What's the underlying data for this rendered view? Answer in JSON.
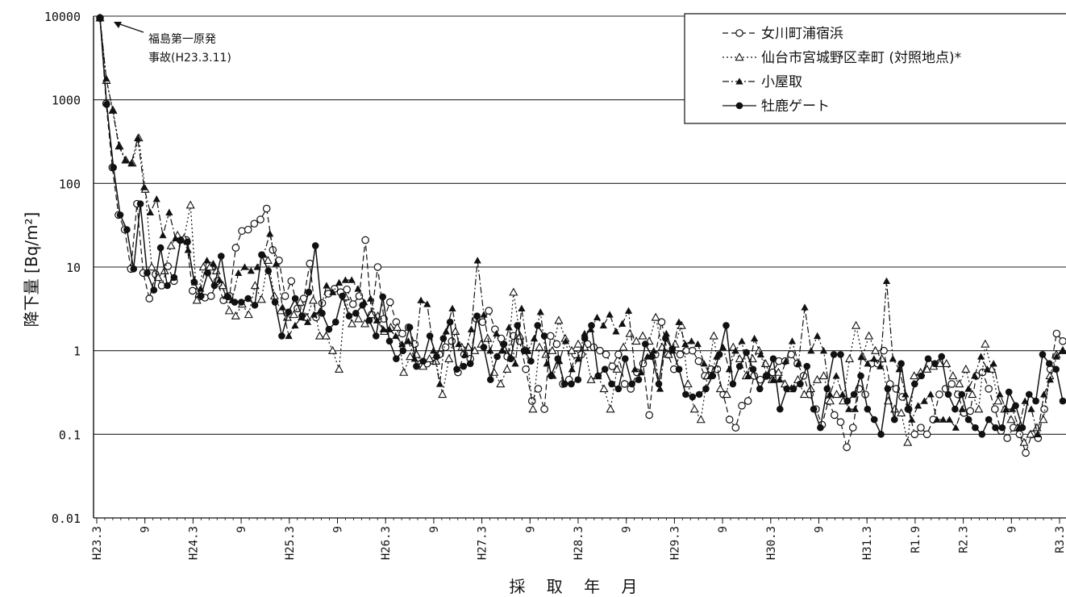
{
  "chart_data": {
    "type": "line",
    "title": "",
    "xlabel": "採 取 年 月",
    "ylabel": "降下量 [Bq/m²]",
    "yscale": "log",
    "ylim": [
      0.01,
      10000
    ],
    "yticks": [
      "10000",
      "1000",
      "100",
      "10",
      "1",
      "0.1",
      "0.01"
    ],
    "xticks": [
      "H23.3",
      "9",
      "H24.3",
      "9",
      "H25.3",
      "9",
      "H26.3",
      "9",
      "H27.3",
      "9",
      "H28.3",
      "9",
      "H29.3",
      "9",
      "H30.3",
      "9",
      "H31.3",
      "R1.9",
      "R2.3",
      "9",
      "R3.3"
    ],
    "grid": "horizontal",
    "legend_position": "top-right",
    "annotation": {
      "line1": "福島第一原発",
      "line2": "事故(H23.3.11)"
    },
    "series": [
      {
        "name": "女川町浦宿浜",
        "marker": "open-circle",
        "linestyle": "dashed",
        "values": [
          9500,
          900,
          155,
          42,
          28,
          9.5,
          57,
          8.5,
          4.2,
          8.2,
          6,
          10.2,
          6.8,
          21,
          21,
          5.2,
          4.4,
          4.3,
          4.5,
          6.8,
          4,
          4.5,
          17,
          27,
          28,
          33,
          37,
          50,
          16,
          12,
          4.5,
          6.8,
          3.2,
          4.2,
          11,
          2.5,
          3.7,
          4.8,
          5.5,
          5,
          5.4,
          3.6,
          4.5,
          21,
          2.7,
          10,
          2.4,
          3.8,
          2.2,
          1.6,
          1.9,
          1.2,
          0.7,
          0.7,
          0.75,
          0.9,
          1.1,
          1.3,
          0.55,
          0.9,
          0.8,
          2.4,
          2.2,
          3,
          1.8,
          1.4,
          0.85,
          1.5,
          1.3,
          0.6,
          0.25,
          0.35,
          0.2,
          1.5,
          1.2,
          0.4,
          0.45,
          0.9,
          0.9,
          1.2,
          1.1,
          1,
          0.9,
          0.65,
          0.9,
          0.4,
          0.35,
          0.55,
          0.7,
          0.17,
          0.9,
          2.2,
          0.9,
          0.6,
          0.9,
          1,
          1,
          0.75,
          0.5,
          0.6,
          0.6,
          0.3,
          0.15,
          0.12,
          0.22,
          0.25,
          0.5,
          0.45,
          0.5,
          0.55,
          0.75,
          0.75,
          0.9,
          0.7,
          0.5,
          0.3,
          0.2,
          0.13,
          0.25,
          0.17,
          0.14,
          0.07,
          0.12,
          0.35,
          0.3,
          0.7,
          0.7,
          1,
          0.4,
          0.35,
          0.28,
          0.2,
          0.1,
          0.12,
          0.1,
          0.15,
          0.3,
          0.35,
          0.4,
          0.3,
          0.18,
          0.19,
          0.5,
          0.55,
          0.35,
          0.2,
          0.11,
          0.09,
          0.12,
          0.1,
          0.06,
          0.1,
          0.09,
          0.2,
          0.6,
          1.6,
          1.3
        ]
      },
      {
        "name": "仙台市宮城野区幸町 (対照地点)*",
        "marker": "open-triangle",
        "linestyle": "dotted",
        "values": [
          9500,
          1700,
          750,
          280,
          190,
          175,
          350,
          85,
          10,
          7.5,
          9,
          18,
          24,
          22,
          55,
          4,
          10,
          10,
          9,
          6,
          3,
          2.6,
          3.6,
          2.7,
          6,
          4.1,
          12,
          4.5,
          3,
          2.5,
          2.7,
          3.8,
          2.5,
          4,
          1.5,
          1.5,
          1,
          0.6,
          4.4,
          2.1,
          2.4,
          2.1,
          2.7,
          2.6,
          1.7,
          1.9,
          1.9,
          0.55,
          0.85,
          0.9,
          0.65,
          0.8,
          0.75,
          0.3,
          0.8,
          1.7,
          1.1,
          1.1,
          1,
          1.2,
          1.4,
          0.55,
          0.4,
          0.6,
          5,
          1.5,
          1,
          0.2,
          1.1,
          0.9,
          1,
          2.3,
          1.4,
          1,
          1.2,
          1.1,
          0.45,
          0.5,
          0.35,
          0.2,
          0.6,
          1.1,
          1.6,
          1.3,
          1.5,
          1.3,
          2.5,
          1.1,
          0.9,
          1.2,
          2,
          0.4,
          0.2,
          0.15,
          0.5,
          1.5,
          0.35,
          0.3,
          1.1,
          0.8,
          0.5,
          0.8,
          1,
          0.7,
          0.45,
          0.55,
          0.4,
          0.35,
          0.45,
          0.3,
          0.35,
          0.45,
          0.5,
          0.25,
          0.3,
          0.25,
          0.8,
          2,
          0.85,
          1.5,
          1,
          0.8,
          0.25,
          0.2,
          0.18,
          0.08,
          0.5,
          0.55,
          0.6,
          0.65,
          0.7,
          0.7,
          0.5,
          0.4,
          0.6,
          0.3,
          0.2,
          1.2,
          0.6,
          0.25,
          0.2,
          0.15,
          0.12,
          0.08,
          0.1,
          0.12,
          0.15,
          0.5,
          0.9,
          1
        ]
      },
      {
        "name": "小屋取",
        "marker": "filled-triangle",
        "linestyle": "dashdot",
        "values": [
          9500,
          1800,
          750,
          280,
          190,
          175,
          350,
          90,
          45,
          65,
          24,
          45,
          22,
          21,
          16,
          7,
          5.5,
          12,
          11,
          7,
          4.5,
          4,
          8.5,
          10,
          9,
          10,
          14,
          25,
          11,
          3.3,
          1.5,
          2,
          2.5,
          2.2,
          2.7,
          3,
          6,
          5,
          6.5,
          7,
          7,
          5.5,
          3.8,
          4.2,
          2.3,
          1.8,
          1.8,
          1.5,
          1.2,
          1.3,
          0.8,
          4,
          3.6,
          1,
          0.4,
          1.7,
          3.2,
          1.2,
          0.9,
          1.8,
          12,
          2.7,
          1,
          1.6,
          1,
          1.9,
          0.7,
          3.2,
          1,
          1.4,
          2.9,
          0.7,
          0.5,
          0.75,
          1.3,
          0.6,
          0.8,
          1.6,
          1.8,
          2.5,
          2,
          2.7,
          1.7,
          2.1,
          3,
          0.6,
          0.55,
          0.85,
          1,
          0.35,
          1.6,
          1,
          2.2,
          1.2,
          1.3,
          1.2,
          0.7,
          0.5,
          0.85,
          1.1,
          0.6,
          1,
          1.3,
          0.5,
          1.4,
          0.9,
          0.5,
          0.45,
          0.45,
          0.75,
          1.3,
          0.7,
          3.3,
          1,
          1.5,
          1,
          0.3,
          0.5,
          0.3,
          0.2,
          0.2,
          0.85,
          0.7,
          0.8,
          0.65,
          6.8,
          0.8,
          0.6,
          0.3,
          0.15,
          0.22,
          0.25,
          0.3,
          0.15,
          0.15,
          0.15,
          0.12,
          0.2,
          0.35,
          0.5,
          0.85,
          0.6,
          0.7,
          0.3,
          0.2,
          0.2,
          0.12,
          0.25,
          0.2,
          0.1,
          0.3,
          0.45,
          0.85,
          1
        ]
      },
      {
        "name": "牡鹿ゲート",
        "marker": "filled-circle",
        "linestyle": "solid",
        "values": [
          9500,
          880,
          155,
          42,
          28,
          9.5,
          57,
          8.5,
          5.3,
          17,
          6,
          7.5,
          21,
          20,
          6.6,
          4.5,
          8.5,
          6,
          13.5,
          4.4,
          3.8,
          3.8,
          4.2,
          3.5,
          14,
          9,
          3.8,
          1.5,
          2.9,
          4.2,
          2.6,
          5,
          18,
          2.8,
          1.8,
          2.2,
          4.5,
          2.6,
          2.8,
          3.5,
          2.3,
          1.5,
          4.4,
          1.3,
          0.8,
          1,
          1.9,
          0.65,
          0.75,
          1.5,
          0.85,
          1.4,
          2.2,
          0.6,
          0.65,
          0.7,
          2.6,
          1.1,
          0.45,
          0.85,
          1.2,
          0.8,
          2,
          1,
          0.75,
          2,
          1.5,
          0.5,
          0.8,
          0.4,
          0.4,
          0.45,
          1.4,
          2,
          0.5,
          0.6,
          0.4,
          0.35,
          0.8,
          0.4,
          0.45,
          1.2,
          0.85,
          0.4,
          1.4,
          1.05,
          0.6,
          0.3,
          0.28,
          0.3,
          0.35,
          0.5,
          0.9,
          2,
          0.4,
          0.65,
          0.95,
          0.6,
          0.35,
          0.5,
          0.8,
          0.2,
          0.35,
          0.35,
          0.4,
          0.65,
          0.2,
          0.12,
          0.35,
          0.9,
          0.9,
          0.25,
          0.3,
          0.5,
          0.2,
          0.15,
          0.1,
          0.35,
          0.15,
          0.7,
          0.2,
          0.4,
          0.5,
          0.8,
          0.7,
          0.85,
          0.3,
          0.2,
          0.3,
          0.15,
          0.12,
          0.1,
          0.15,
          0.12,
          0.12,
          0.32,
          0.22,
          0.12,
          0.3,
          0.25,
          0.9,
          0.7,
          0.6,
          0.25
        ]
      }
    ]
  }
}
